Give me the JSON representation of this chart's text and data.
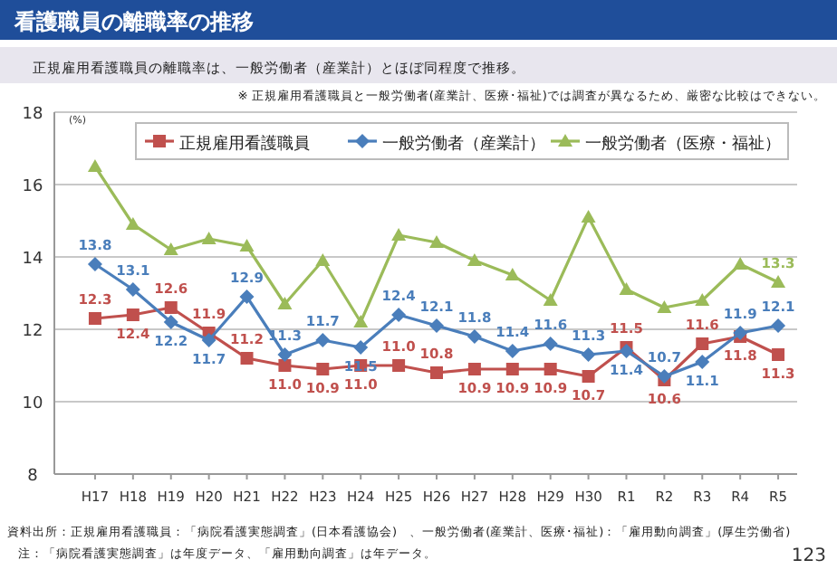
{
  "chart_data": {
    "type": "line",
    "title": "看護職員の離職率の推移",
    "subtitle": "正規雇用看護職員の離職率は、一般労働者（産業計）とほぼ同程度で推移。",
    "ylabel": "(%)",
    "annotations": [
      "※ 正規雇用看護職員と一般労働者(産業計、医療･福祉)では調査が異なるため、厳密な比較はできない。",
      "資料出所：正規雇用看護職員：「病院看護実態調査」(日本看護協会)　、一般労働者(産業計、医療･福祉)：「雇用動向調査」(厚生労働省)",
      "注：「病院看護実態調査」は年度データ、「雇用動向調査」は年データ。",
      "123"
    ],
    "categories": [
      "H17",
      "H18",
      "H19",
      "H20",
      "H21",
      "H22",
      "H23",
      "H24",
      "H25",
      "H26",
      "H27",
      "H28",
      "H29",
      "H30",
      "R1",
      "R2",
      "R3",
      "R4",
      "R5"
    ],
    "ylim": [
      8,
      18
    ],
    "yticks": [
      8,
      10,
      12,
      14,
      16,
      18
    ],
    "grid": "y",
    "legend": "top",
    "series": [
      {
        "name": "正規雇用看護職員",
        "color": "#c0504d",
        "marker": "square",
        "values": [
          12.3,
          12.4,
          12.6,
          11.9,
          11.2,
          11.0,
          10.9,
          11.0,
          11.0,
          10.8,
          10.9,
          10.9,
          10.9,
          10.7,
          11.5,
          10.6,
          11.6,
          11.8,
          11.3
        ],
        "value_labels": [
          "12.3",
          "12.4",
          "12.6",
          "11.9",
          "11.2",
          "11.0",
          "10.9",
          "11.0",
          "11.0",
          "10.8",
          "10.9",
          "10.9",
          "10.9",
          "10.7",
          "11.5",
          "10.6",
          "11.6",
          "11.8",
          "11.3"
        ]
      },
      {
        "name": "一般労働者（産業計）",
        "color": "#4a7ebb",
        "marker": "diamond",
        "values": [
          13.8,
          13.1,
          12.2,
          11.7,
          12.9,
          11.3,
          11.7,
          11.5,
          12.4,
          12.1,
          11.8,
          11.4,
          11.6,
          11.3,
          11.4,
          10.7,
          11.1,
          11.9,
          12.1
        ],
        "value_labels": [
          "13.8",
          "13.1",
          "12.2",
          "11.7",
          "12.9",
          "11.3",
          "11.7",
          "11.5",
          "12.4",
          "12.1",
          "11.8",
          "11.4",
          "11.6",
          "11.3",
          "11.4",
          "10.7",
          "11.1",
          "11.9",
          "12.1"
        ]
      },
      {
        "name": "一般労働者（医療・福祉）",
        "color": "#9bbb59",
        "marker": "triangle",
        "values": [
          16.5,
          14.9,
          14.2,
          14.5,
          14.3,
          12.7,
          13.9,
          12.2,
          14.6,
          14.4,
          13.9,
          13.5,
          12.8,
          15.1,
          13.1,
          12.6,
          12.8,
          13.8,
          13.3
        ],
        "value_labels": [
          null,
          null,
          null,
          null,
          null,
          null,
          null,
          null,
          null,
          null,
          null,
          null,
          null,
          null,
          null,
          null,
          null,
          null,
          "13.3"
        ]
      }
    ]
  }
}
